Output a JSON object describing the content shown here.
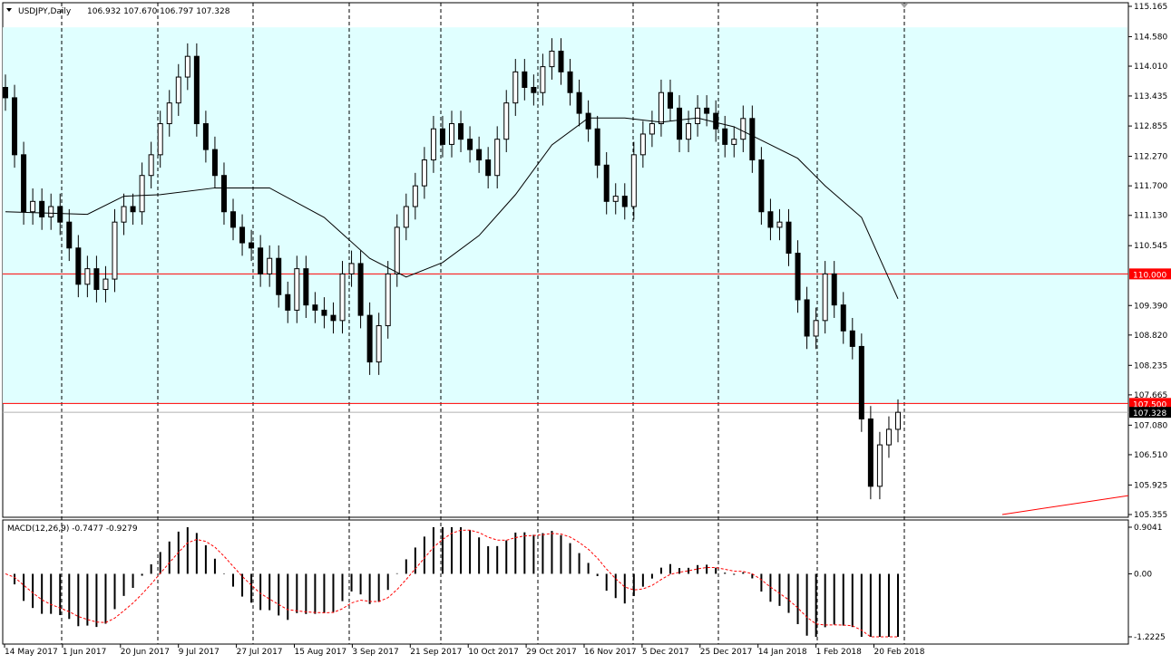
{
  "header": {
    "symbol": "USDJPY,Daily",
    "ohlc": "106.932 107.670 106.797 107.328"
  },
  "macd_label": "MACD(12,26,9) -0.7477 -0.9279",
  "colors": {
    "band": "#e0ffff",
    "level": "#ff0000",
    "candle": "#000000",
    "signal": "#ff0000"
  },
  "chart_data": {
    "type": "candlestick",
    "title": "USDJPY,Daily",
    "ylim": [
      105.355,
      115.165
    ],
    "price_ticks": [
      "115.165",
      "114.580",
      "114.010",
      "113.435",
      "112.855",
      "112.270",
      "111.700",
      "111.130",
      "110.545",
      "109.390",
      "108.820",
      "108.235",
      "107.665",
      "107.080",
      "106.510",
      "105.925",
      "105.355"
    ],
    "date_ticks": [
      "14 May 2017",
      "1 Jun 2017",
      "20 Jun 2017",
      "9 Jul 2017",
      "27 Jul 2017",
      "15 Aug 2017",
      "3 Sep 2017",
      "21 Sep 2017",
      "10 Oct 2017",
      "29 Oct 2017",
      "16 Nov 2017",
      "5 Dec 2017",
      "25 Dec 2017",
      "14 Jan 2018",
      "1 Feb 2018",
      "20 Feb 2018"
    ],
    "closes": [
      113.4,
      112.3,
      111.2,
      111.4,
      111.1,
      111.3,
      111.0,
      110.5,
      109.8,
      110.1,
      109.7,
      109.9,
      111.0,
      111.3,
      111.2,
      111.9,
      112.3,
      112.9,
      113.3,
      113.8,
      114.2,
      112.9,
      112.4,
      111.9,
      111.2,
      110.9,
      110.6,
      110.5,
      110.0,
      110.3,
      109.6,
      109.3,
      110.1,
      109.4,
      109.3,
      109.2,
      109.1,
      110.0,
      110.2,
      109.2,
      108.3,
      109.0,
      110.0,
      110.9,
      111.3,
      111.7,
      112.2,
      112.8,
      112.5,
      112.9,
      112.6,
      112.4,
      112.2,
      111.9,
      112.6,
      113.3,
      113.9,
      113.6,
      113.5,
      114.0,
      114.3,
      113.9,
      113.5,
      113.1,
      112.8,
      112.1,
      111.4,
      111.5,
      111.3,
      112.3,
      112.7,
      112.9,
      113.5,
      113.2,
      112.6,
      112.9,
      113.2,
      113.1,
      112.8,
      112.5,
      112.6,
      113.0,
      112.2,
      111.2,
      110.9,
      111.0,
      110.4,
      109.5,
      108.8,
      109.1,
      110.0,
      109.4,
      108.9,
      108.6,
      107.2,
      105.9,
      106.7,
      107.0,
      107.328
    ],
    "moving_average": [
      [
        0,
        111.2
      ],
      [
        9,
        111.15
      ],
      [
        13,
        111.5
      ],
      [
        17,
        111.53
      ],
      [
        23,
        111.66
      ],
      [
        29,
        111.66
      ],
      [
        35,
        111.09
      ],
      [
        40,
        110.3
      ],
      [
        44,
        109.94
      ],
      [
        48,
        110.22
      ],
      [
        52,
        110.74
      ],
      [
        56,
        111.53
      ],
      [
        60,
        112.49
      ],
      [
        64,
        113.01
      ],
      [
        68,
        113.01
      ],
      [
        72,
        112.93
      ],
      [
        76,
        113.01
      ],
      [
        80,
        112.84
      ],
      [
        83,
        112.58
      ],
      [
        87,
        112.23
      ],
      [
        90,
        111.7
      ],
      [
        94,
        111.09
      ],
      [
        96,
        110.3
      ],
      [
        98,
        109.52
      ]
    ],
    "levels": [
      {
        "price": 110.0,
        "label": "110.000"
      },
      {
        "price": 107.5,
        "label": "107.500"
      }
    ],
    "current_price": {
      "price": 107.328,
      "label": "107.328"
    },
    "band": [
      107.5,
      114.76
    ],
    "trendline": [
      [
        105.355,
        105.72
      ]
    ],
    "macd": {
      "ylim": [
        -1.2225,
        0.9041
      ],
      "ticks": [
        "0.9041",
        "0.00",
        "-1.2225"
      ]
    }
  }
}
